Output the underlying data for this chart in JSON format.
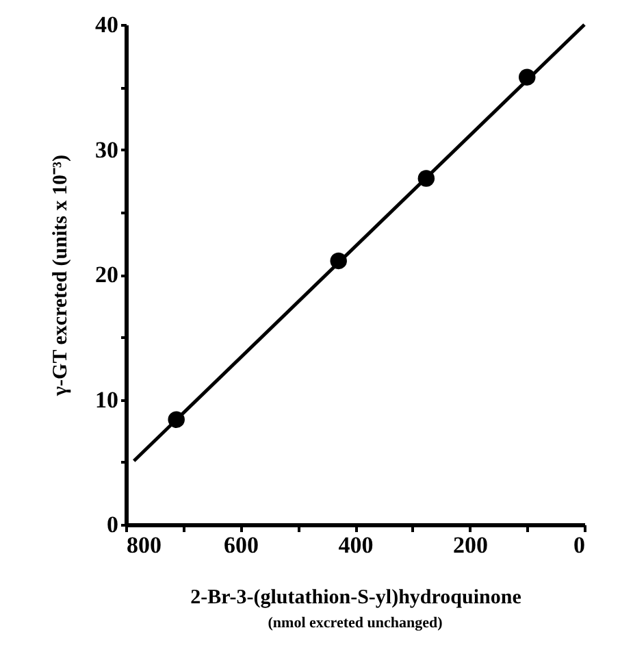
{
  "chart_data": {
    "type": "scatter",
    "xlabel": "2-Br-3-(glutathion-S-yl)hydroquinone",
    "ylabel": "γ-GT excreted (units x 10⁻³)",
    "annotations": [
      "(nmol excreted unchanged)"
    ],
    "x": [
      712,
      429,
      276,
      100
    ],
    "series": [
      {
        "color": "#000000",
        "marker": "circle",
        "values": [
          8.4,
          21.1,
          27.7,
          35.8
        ]
      },
      {
        "type": "line",
        "color": "#000000",
        "line_style": "solid",
        "marker": "none",
        "x": [
          786,
          0
        ],
        "values": [
          5.1,
          40
        ]
      }
    ],
    "xlim": [
      800,
      0
    ],
    "ylim": [
      0,
      40
    ],
    "xticks": [
      800,
      {
        "value": 700,
        "label": null
      },
      600,
      {
        "value": 500,
        "label": null
      },
      400,
      {
        "value": 300,
        "label": null
      },
      200,
      {
        "value": 100,
        "label": null
      },
      0
    ],
    "yticks": [
      0,
      {
        "value": 5,
        "label": null
      },
      10,
      {
        "value": 15,
        "label": null
      },
      20,
      {
        "value": 25,
        "label": null
      },
      30,
      {
        "value": 35,
        "label": null
      },
      40
    ]
  }
}
